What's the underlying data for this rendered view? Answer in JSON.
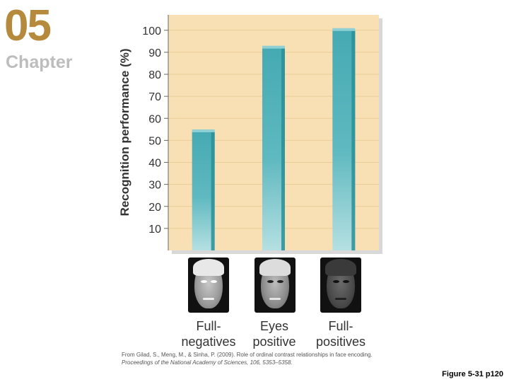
{
  "header": {
    "chapter_number": "05",
    "chapter_word": "Chapter"
  },
  "chart_data": {
    "type": "bar",
    "title": "",
    "xlabel": "",
    "ylabel": "Recognition performance (%)",
    "categories": [
      "Full-\nnegatives",
      "Eyes\npositive",
      "Full-\npositives"
    ],
    "category_lines": [
      [
        "Full-",
        "negatives"
      ],
      [
        "Eyes",
        "positive"
      ],
      [
        "Full-",
        "positives"
      ]
    ],
    "values": [
      54,
      92,
      100
    ],
    "yticks": [
      10,
      20,
      30,
      40,
      50,
      60,
      70,
      80,
      90,
      100
    ],
    "ylim": [
      0,
      107
    ],
    "grid": true,
    "bar_color": "#4aaeb6",
    "plot_background": "#f9e0b4"
  },
  "credit": {
    "line1": "From Gilad, S., Meng, M., & Sinha, P. (2009). Role of ordinal contrast relationships in face encoding.",
    "line2": "Proceedings of the National Academy of Sciences, 106, 5353–5358."
  },
  "caption": "Figure 5-31 p120"
}
